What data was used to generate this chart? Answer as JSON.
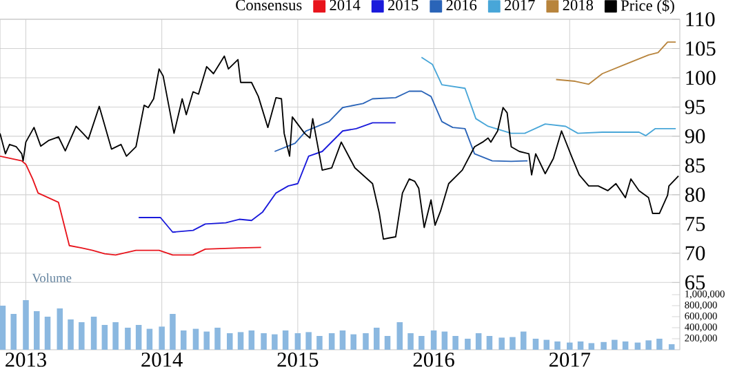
{
  "chart_data": {
    "type": "line",
    "legend_title": "Consensus",
    "annotations": [
      "Volume"
    ],
    "xlim": [
      2012.81,
      2017.81
    ],
    "xticks": [
      2013,
      2014,
      2015,
      2016,
      2017
    ],
    "ylim": [
      53.5,
      110
    ],
    "yticks": [
      65,
      70,
      75,
      80,
      85,
      90,
      95,
      100,
      105,
      110
    ],
    "y2lim": [
      0,
      6000000
    ],
    "y2ticks": [
      {
        "value": 200000,
        "label": "200,000"
      },
      {
        "value": 400000,
        "label": "400,000"
      },
      {
        "value": 600000,
        "label": "600,000"
      },
      {
        "value": 800000,
        "label": "800,000"
      },
      {
        "value": 1000000,
        "label": "1,000,000"
      }
    ],
    "grid": true,
    "legend": "top",
    "marker": "none",
    "line_style": "solid",
    "series": [
      {
        "name": "2014",
        "color": "#e8141c",
        "x": [
          2012.81,
          2012.97,
          2013.0,
          2013.05,
          2013.09,
          2013.24,
          2013.32,
          2013.41,
          2013.49,
          2013.58,
          2013.66,
          2013.81,
          2013.98,
          2014.08,
          2014.23,
          2014.32,
          2014.57,
          2014.73
        ],
        "values": [
          86.6,
          85.8,
          85.2,
          82.7,
          80.3,
          78.7,
          71.3,
          70.9,
          70.5,
          69.9,
          69.7,
          70.5,
          70.5,
          69.7,
          69.7,
          70.7,
          70.9,
          71.0
        ]
      },
      {
        "name": "2015",
        "color": "#1a1adb",
        "x": [
          2013.83,
          2013.99,
          2014.08,
          2014.23,
          2014.32,
          2014.47,
          2014.57,
          2014.66,
          2014.74,
          2014.84,
          2014.93,
          2015.0,
          2015.08,
          2015.18,
          2015.33,
          2015.43,
          2015.55,
          2015.72
        ],
        "values": [
          76.1,
          76.1,
          73.6,
          73.9,
          75.0,
          75.2,
          75.8,
          75.6,
          77.0,
          80.3,
          81.5,
          81.9,
          86.6,
          87.4,
          90.9,
          91.3,
          92.3,
          92.3
        ]
      },
      {
        "name": "2016",
        "color": "#2a64b8",
        "x": [
          2014.83,
          2014.98,
          2015.06,
          2015.23,
          2015.33,
          2015.48,
          2015.55,
          2015.72,
          2015.82,
          2015.91,
          2015.98,
          2016.06,
          2016.14,
          2016.23,
          2016.3,
          2016.43,
          2016.57,
          2016.69
        ],
        "values": [
          87.4,
          88.8,
          90.9,
          92.5,
          94.9,
          95.6,
          96.4,
          96.6,
          97.7,
          97.7,
          96.8,
          92.5,
          91.5,
          91.3,
          87.0,
          85.8,
          85.7,
          85.8
        ]
      },
      {
        "name": "2017",
        "color": "#48a6d8",
        "x": [
          2015.91,
          2015.99,
          2016.06,
          2016.23,
          2016.31,
          2016.4,
          2016.57,
          2016.67,
          2016.82,
          2016.97,
          2017.06,
          2017.24,
          2017.51,
          2017.56,
          2017.63,
          2017.78
        ],
        "values": [
          103.5,
          102.3,
          98.8,
          98.2,
          93.0,
          91.7,
          90.5,
          90.5,
          92.1,
          91.7,
          90.5,
          90.7,
          90.7,
          90.1,
          91.3,
          91.3
        ]
      },
      {
        "name": "2018",
        "color": "#b8843c",
        "x": [
          2016.9,
          2017.04,
          2017.14,
          2017.24,
          2017.41,
          2017.58,
          2017.65,
          2017.72,
          2017.78
        ],
        "values": [
          99.7,
          99.4,
          98.9,
          100.7,
          102.3,
          103.9,
          104.3,
          106.1,
          106.1
        ]
      },
      {
        "name": "Price ($)",
        "color": "#000000",
        "x": [
          2012.81,
          2012.85,
          2012.88,
          2012.93,
          2012.97,
          2012.98,
          2013.0,
          2013.06,
          2013.11,
          2013.17,
          2013.24,
          2013.29,
          2013.37,
          2013.42,
          2013.46,
          2013.54,
          2013.63,
          2013.7,
          2013.74,
          2013.81,
          2013.87,
          2013.9,
          2013.94,
          2013.98,
          2014.01,
          2014.09,
          2014.15,
          2014.18,
          2014.23,
          2014.27,
          2014.33,
          2014.38,
          2014.46,
          2014.49,
          2014.56,
          2014.58,
          2014.66,
          2014.71,
          2014.78,
          2014.84,
          2014.88,
          2014.9,
          2014.94,
          2014.96,
          2015.05,
          2015.09,
          2015.11,
          2015.18,
          2015.25,
          2015.32,
          2015.42,
          2015.55,
          2015.6,
          2015.63,
          2015.67,
          2015.72,
          2015.77,
          2015.82,
          2015.86,
          2015.89,
          2015.93,
          2015.98,
          2016.01,
          2016.05,
          2016.11,
          2016.21,
          2016.3,
          2016.36,
          2016.4,
          2016.42,
          2016.47,
          2016.51,
          2016.54,
          2016.57,
          2016.63,
          2016.7,
          2016.72,
          2016.75,
          2016.82,
          2016.88,
          2016.94,
          2017.02,
          2017.07,
          2017.14,
          2017.21,
          2017.28,
          2017.34,
          2017.41,
          2017.45,
          2017.51,
          2017.58,
          2017.61,
          2017.66,
          2017.72,
          2017.73,
          2017.8
        ],
        "values": [
          90.5,
          87.0,
          88.6,
          88.2,
          87.0,
          85.8,
          89.0,
          91.5,
          88.3,
          89.3,
          89.9,
          87.5,
          91.7,
          90.5,
          89.5,
          95.1,
          87.8,
          88.6,
          86.6,
          88.2,
          95.3,
          94.9,
          96.4,
          101.5,
          100.3,
          90.5,
          96.4,
          93.7,
          97.6,
          97.2,
          101.9,
          100.7,
          103.7,
          101.5,
          103.1,
          99.2,
          99.2,
          96.8,
          91.5,
          96.6,
          96.4,
          90.5,
          86.6,
          93.3,
          90.5,
          89.7,
          93.0,
          84.2,
          84.6,
          89.0,
          84.6,
          81.9,
          76.8,
          72.4,
          72.6,
          72.8,
          80.3,
          82.7,
          82.3,
          81.1,
          74.4,
          79.1,
          74.8,
          77.2,
          81.9,
          84.2,
          88.2,
          89.0,
          89.7,
          89.0,
          90.9,
          94.9,
          94.0,
          88.2,
          87.4,
          87.0,
          83.4,
          87.0,
          83.6,
          86.2,
          90.9,
          86.2,
          83.4,
          81.5,
          81.5,
          80.7,
          81.9,
          79.5,
          82.7,
          80.7,
          79.5,
          76.8,
          76.8,
          79.9,
          81.5,
          83.2
        ]
      },
      {
        "type": "bar",
        "axis": "y2",
        "color": "#8bb8e0",
        "x": [
          2012.83,
          2012.91,
          2013.0,
          2013.08,
          2013.16,
          2013.25,
          2013.33,
          2013.41,
          2013.5,
          2013.58,
          2013.66,
          2013.75,
          2013.83,
          2013.91,
          2014.0,
          2014.08,
          2014.16,
          2014.25,
          2014.33,
          2014.41,
          2014.5,
          2014.58,
          2014.66,
          2014.75,
          2014.83,
          2014.91,
          2015.0,
          2015.08,
          2015.16,
          2015.25,
          2015.33,
          2015.41,
          2015.5,
          2015.58,
          2015.66,
          2015.75,
          2015.83,
          2015.91,
          2016.0,
          2016.08,
          2016.16,
          2016.25,
          2016.33,
          2016.41,
          2016.5,
          2016.58,
          2016.66,
          2016.75,
          2016.83,
          2016.91,
          2017.0,
          2017.08,
          2017.16,
          2017.25,
          2017.33,
          2017.41,
          2017.5,
          2017.58,
          2017.66,
          2017.75
        ],
        "values": [
          800000,
          650000,
          900000,
          700000,
          600000,
          750000,
          550000,
          500000,
          600000,
          450000,
          500000,
          400000,
          450000,
          380000,
          420000,
          650000,
          350000,
          380000,
          330000,
          400000,
          300000,
          320000,
          350000,
          300000,
          280000,
          350000,
          300000,
          320000,
          250000,
          300000,
          350000,
          280000,
          300000,
          400000,
          250000,
          500000,
          300000,
          250000,
          350000,
          330000,
          250000,
          200000,
          300000,
          250000,
          220000,
          230000,
          330000,
          200000,
          180000,
          150000,
          130000,
          150000,
          120000,
          140000,
          180000,
          150000,
          130000,
          170000,
          200000,
          100000
        ]
      }
    ]
  }
}
